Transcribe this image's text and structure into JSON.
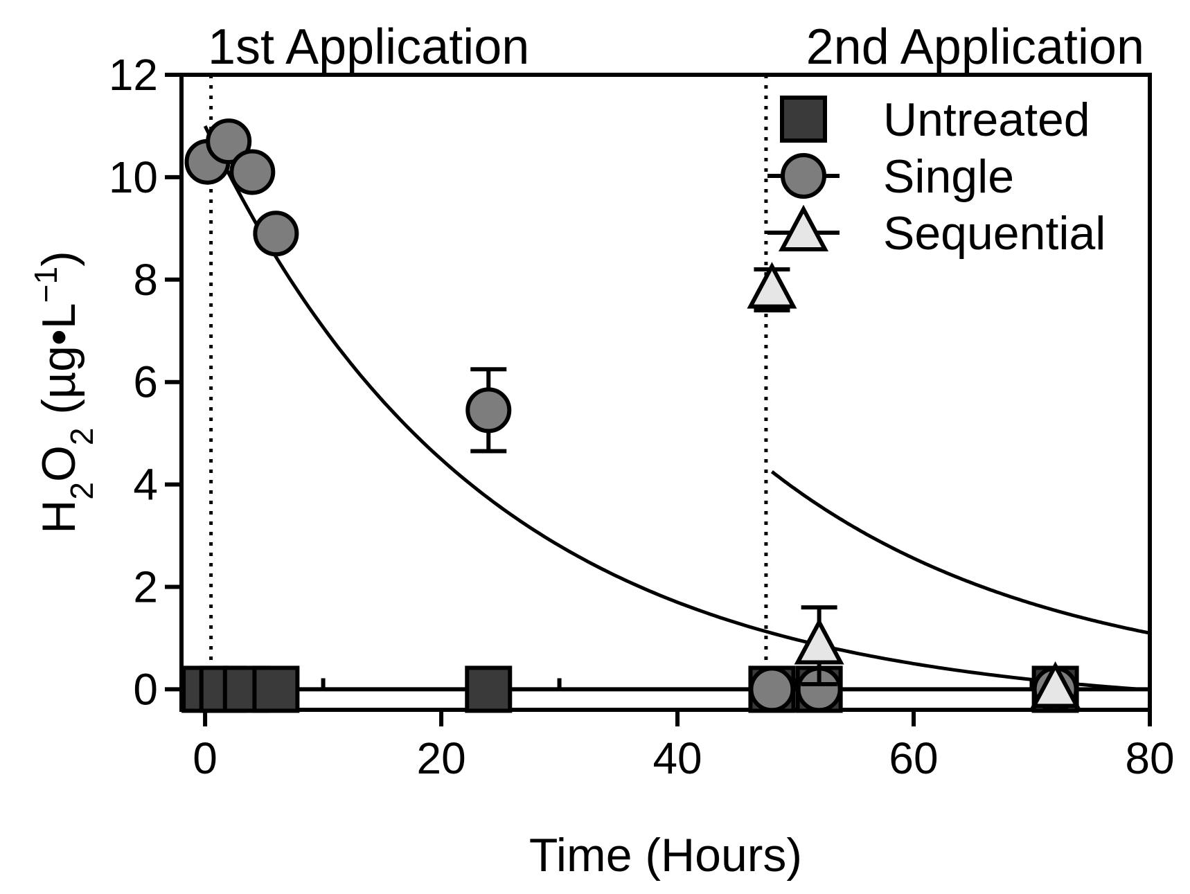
{
  "chart_data": {
    "type": "scatter",
    "xlabel": "Time (Hours)",
    "ylabel": {
      "base": "H",
      "sub1": "2",
      "mid": "O",
      "sub2": "2",
      "unit_open": " (µg•L",
      "sup": "−1",
      "unit_close": ")"
    },
    "xlim": [
      -2,
      80
    ],
    "ylim": [
      -0.4,
      12
    ],
    "xticks": [
      0,
      20,
      40,
      60,
      80
    ],
    "yticks": [
      0,
      2,
      4,
      6,
      8,
      10,
      12
    ],
    "xticks_minor": [
      10,
      30,
      50,
      70
    ],
    "grid": false,
    "legend_position": "top-right",
    "annotations": [
      {
        "text": "1st Application",
        "x": 0
      },
      {
        "text": "2nd Application",
        "x": 47.5
      }
    ],
    "application_lines_x": [
      0.5,
      47.5
    ],
    "series": [
      {
        "name": "Untreated",
        "marker": "square",
        "color": "#3a3a3a",
        "points": [
          {
            "x": 0,
            "y": 0
          },
          {
            "x": 1.5,
            "y": 0
          },
          {
            "x": 3.5,
            "y": 0
          },
          {
            "x": 6,
            "y": 0
          },
          {
            "x": 24,
            "y": 0
          },
          {
            "x": 48,
            "y": 0
          },
          {
            "x": 52,
            "y": 0
          },
          {
            "x": 72,
            "y": 0
          }
        ]
      },
      {
        "name": "Single",
        "marker": "circle",
        "color": "#7d7d7d",
        "points": [
          {
            "x": 0.2,
            "y": 10.3
          },
          {
            "x": 2,
            "y": 10.7
          },
          {
            "x": 4,
            "y": 10.1
          },
          {
            "x": 6,
            "y": 8.9
          },
          {
            "x": 24,
            "y": 5.45,
            "err": 0.8
          },
          {
            "x": 48,
            "y": 0
          },
          {
            "x": 52,
            "y": 0
          },
          {
            "x": 72,
            "y": 0
          }
        ]
      },
      {
        "name": "Sequential",
        "marker": "triangle",
        "color": "#e6e6e6",
        "points": [
          {
            "x": 48,
            "y": 7.8,
            "err": 0.4
          },
          {
            "x": 52,
            "y": 0.85,
            "err": 0.75
          },
          {
            "x": 72,
            "y": 0
          }
        ]
      }
    ],
    "fit_curves": [
      {
        "x0": 0,
        "x1": 80,
        "a": 11.4,
        "k": 0.0423,
        "c": -0.4
      },
      {
        "x0": 48,
        "x1": 80,
        "a": 4.25,
        "k": 0.0423,
        "c": 0
      }
    ]
  }
}
